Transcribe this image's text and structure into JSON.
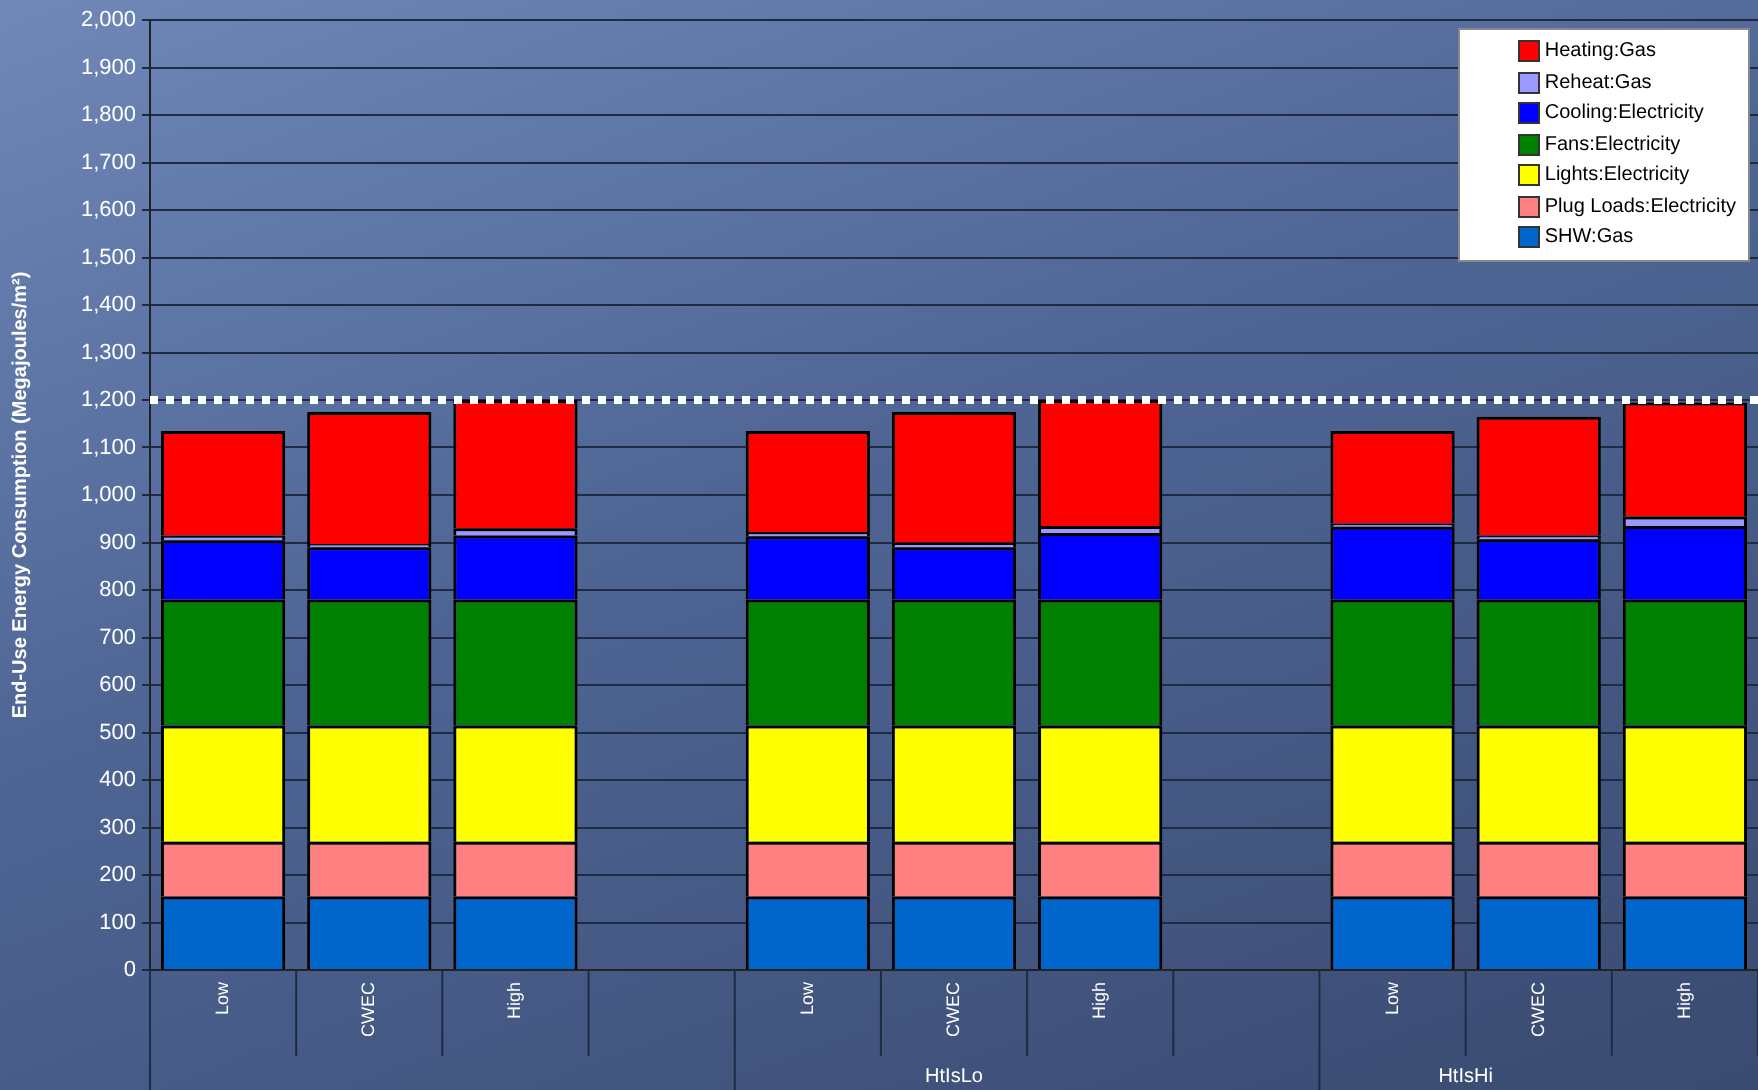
{
  "chart_data": {
    "type": "bar",
    "stacked": true,
    "ylabel": "End-Use Energy Consumption (Megajoules/m²)",
    "categories": [
      "Low",
      "CWEC",
      "High",
      null,
      "Low",
      "CWEC",
      "High",
      null,
      "Low",
      "CWEC",
      "High"
    ],
    "series": [
      {
        "name": "SHW:Gas",
        "color": "#0066cc",
        "values": [
          155,
          155,
          155,
          null,
          155,
          155,
          155,
          null,
          155,
          155,
          155
        ]
      },
      {
        "name": "Plug Loads:Electricity",
        "color": "#ff8080",
        "values": [
          115,
          115,
          115,
          null,
          115,
          115,
          115,
          null,
          115,
          115,
          115
        ]
      },
      {
        "name": "Lights:Electricity",
        "color": "#ffff00",
        "values": [
          245,
          245,
          245,
          null,
          245,
          245,
          245,
          null,
          245,
          245,
          245
        ]
      },
      {
        "name": "Fans:Electricity",
        "color": "#008000",
        "values": [
          265,
          265,
          265,
          null,
          265,
          265,
          265,
          null,
          265,
          265,
          265
        ]
      },
      {
        "name": "Cooling:Electricity",
        "color": "#0000ff",
        "values": [
          125,
          110,
          135,
          null,
          133,
          110,
          140,
          null,
          153,
          127,
          155
        ]
      },
      {
        "name": "Reheat:Gas",
        "color": "#9999ff",
        "values": [
          10,
          7,
          15,
          null,
          9,
          10,
          15,
          null,
          7,
          8,
          20
        ]
      },
      {
        "name": "Heating:Gas",
        "color": "#ff0000",
        "values": [
          220,
          278,
          270,
          null,
          213,
          275,
          265,
          null,
          195,
          250,
          240
        ]
      }
    ],
    "ylim": [
      0,
      2000
    ],
    "yticks": [
      0,
      100,
      200,
      300,
      400,
      500,
      600,
      700,
      800,
      900,
      {
        "value": 1000,
        "label": "1,000"
      },
      {
        "value": 1100,
        "label": "1,100"
      },
      {
        "value": 1200,
        "label": "1,200"
      },
      {
        "value": 1300,
        "label": "1,300"
      },
      {
        "value": 1400,
        "label": "1,400"
      },
      {
        "value": 1500,
        "label": "1,500"
      },
      {
        "value": 1600,
        "label": "1,600"
      },
      {
        "value": 1700,
        "label": "1,700"
      },
      {
        "value": 1800,
        "label": "1,800"
      },
      {
        "value": 1900,
        "label": "1,900"
      },
      {
        "value": 2000,
        "label": "2,000"
      }
    ],
    "grid": "y",
    "legend": "top right",
    "ref_lines": [
      {
        "axis": "y",
        "value": 1200,
        "color": "#ffffff",
        "line_style": "dotted"
      }
    ],
    "annotations": [
      "HtIsLo",
      "HtIsHi"
    ]
  }
}
